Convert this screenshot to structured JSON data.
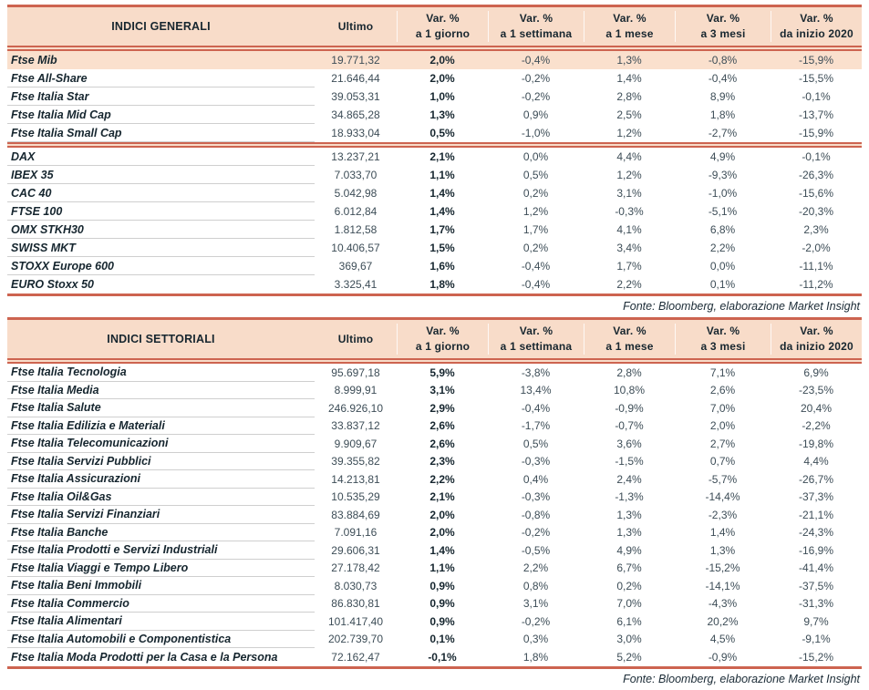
{
  "page": {
    "accent_red": "#cd6450",
    "header_peach": "#f8dcc9",
    "highlight_peach": "#fae0cd",
    "text_dark": "#16262f",
    "text_number": "#3d4d57"
  },
  "tables": [
    {
      "title": "INDICI GENERALI",
      "col_ultimo": "Ultimo",
      "var_cols": [
        {
          "line1": "Var. %",
          "line2": "a 1 giorno"
        },
        {
          "line1": "Var. %",
          "line2": "a 1 settimana"
        },
        {
          "line1": "Var. %",
          "line2": "a 1 mese"
        },
        {
          "line1": "Var. %",
          "line2": "a 3 mesi"
        },
        {
          "line1": "Var. %",
          "line2": "da inizio 2020"
        }
      ],
      "rows": [
        {
          "name": "Ftse Mib",
          "values": [
            "19.771,32",
            "2,0%",
            "-0,4%",
            "1,3%",
            "-0,8%",
            "-15,9%"
          ],
          "highlight": true
        },
        {
          "name": "Ftse All-Share",
          "values": [
            "21.646,44",
            "2,0%",
            "-0,2%",
            "1,4%",
            "-0,4%",
            "-15,5%"
          ]
        },
        {
          "name": "Ftse Italia Star",
          "values": [
            "39.053,31",
            "1,0%",
            "-0,2%",
            "2,8%",
            "8,9%",
            "-0,1%"
          ]
        },
        {
          "name": "Ftse Italia Mid Cap",
          "values": [
            "34.865,28",
            "1,3%",
            "0,9%",
            "2,5%",
            "1,8%",
            "-13,7%"
          ]
        },
        {
          "name": "Ftse Italia Small Cap",
          "values": [
            "18.933,04",
            "0,5%",
            "-1,0%",
            "1,2%",
            "-2,7%",
            "-15,9%"
          ]
        },
        {
          "name": "DAX",
          "values": [
            "13.237,21",
            "2,1%",
            "0,0%",
            "4,4%",
            "4,9%",
            "-0,1%"
          ],
          "separator_before": true
        },
        {
          "name": "IBEX 35",
          "values": [
            "7.033,70",
            "1,1%",
            "0,5%",
            "1,2%",
            "-9,3%",
            "-26,3%"
          ]
        },
        {
          "name": "CAC 40",
          "values": [
            "5.042,98",
            "1,4%",
            "0,2%",
            "3,1%",
            "-1,0%",
            "-15,6%"
          ]
        },
        {
          "name": "FTSE 100",
          "values": [
            "6.012,84",
            "1,4%",
            "1,2%",
            "-0,3%",
            "-5,1%",
            "-20,3%"
          ]
        },
        {
          "name": "OMX STKH30",
          "values": [
            "1.812,58",
            "1,7%",
            "1,7%",
            "4,1%",
            "6,8%",
            "2,3%"
          ]
        },
        {
          "name": "SWISS MKT",
          "values": [
            "10.406,57",
            "1,5%",
            "0,2%",
            "3,4%",
            "2,2%",
            "-2,0%"
          ]
        },
        {
          "name": "STOXX Europe 600",
          "values": [
            "369,67",
            "1,6%",
            "-0,4%",
            "1,7%",
            "0,0%",
            "-11,1%"
          ]
        },
        {
          "name": "EURO Stoxx 50",
          "values": [
            "3.325,41",
            "1,8%",
            "-0,4%",
            "2,2%",
            "0,1%",
            "-11,2%"
          ]
        }
      ],
      "fonte": "Fonte: Bloomberg, elaborazione Market Insight"
    },
    {
      "title": "INDICI SETTORIALI",
      "col_ultimo": "Ultimo",
      "var_cols": [
        {
          "line1": "Var. %",
          "line2": "a 1 giorno"
        },
        {
          "line1": "Var. %",
          "line2": "a 1 settimana"
        },
        {
          "line1": "Var. %",
          "line2": "a 1 mese"
        },
        {
          "line1": "Var. %",
          "line2": "a 3 mesi"
        },
        {
          "line1": "Var. %",
          "line2": "da inizio 2020"
        }
      ],
      "rows": [
        {
          "name": "Ftse Italia Tecnologia",
          "values": [
            "95.697,18",
            "5,9%",
            "-3,8%",
            "2,8%",
            "7,1%",
            "6,9%"
          ]
        },
        {
          "name": "Ftse Italia Media",
          "values": [
            "8.999,91",
            "3,1%",
            "13,4%",
            "10,8%",
            "2,6%",
            "-23,5%"
          ]
        },
        {
          "name": "Ftse Italia Salute",
          "values": [
            "246.926,10",
            "2,9%",
            "-0,4%",
            "-0,9%",
            "7,0%",
            "20,4%"
          ]
        },
        {
          "name": "Ftse Italia Edilizia e Materiali",
          "values": [
            "33.837,12",
            "2,6%",
            "-1,7%",
            "-0,7%",
            "2,0%",
            "-2,2%"
          ]
        },
        {
          "name": "Ftse Italia Telecomunicazioni",
          "values": [
            "9.909,67",
            "2,6%",
            "0,5%",
            "3,6%",
            "2,7%",
            "-19,8%"
          ]
        },
        {
          "name": "Ftse Italia Servizi Pubblici",
          "values": [
            "39.355,82",
            "2,3%",
            "-0,3%",
            "-1,5%",
            "0,7%",
            "4,4%"
          ]
        },
        {
          "name": "Ftse Italia Assicurazioni",
          "values": [
            "14.213,81",
            "2,2%",
            "0,4%",
            "2,4%",
            "-5,7%",
            "-26,7%"
          ]
        },
        {
          "name": "Ftse Italia Oil&Gas",
          "values": [
            "10.535,29",
            "2,1%",
            "-0,3%",
            "-1,3%",
            "-14,4%",
            "-37,3%"
          ]
        },
        {
          "name": "Ftse Italia Servizi Finanziari",
          "values": [
            "83.884,69",
            "2,0%",
            "-0,8%",
            "1,3%",
            "-2,3%",
            "-21,1%"
          ]
        },
        {
          "name": "Ftse Italia Banche",
          "values": [
            "7.091,16",
            "2,0%",
            "-0,2%",
            "1,3%",
            "1,4%",
            "-24,3%"
          ]
        },
        {
          "name": "Ftse Italia Prodotti e Servizi Industriali",
          "values": [
            "29.606,31",
            "1,4%",
            "-0,5%",
            "4,9%",
            "1,3%",
            "-16,9%"
          ]
        },
        {
          "name": "Ftse Italia Viaggi e Tempo Libero",
          "values": [
            "27.178,42",
            "1,1%",
            "2,2%",
            "6,7%",
            "-15,2%",
            "-41,4%"
          ]
        },
        {
          "name": "Ftse Italia Beni Immobili",
          "values": [
            "8.030,73",
            "0,9%",
            "0,8%",
            "0,2%",
            "-14,1%",
            "-37,5%"
          ]
        },
        {
          "name": "Ftse Italia Commercio",
          "values": [
            "86.830,81",
            "0,9%",
            "3,1%",
            "7,0%",
            "-4,3%",
            "-31,3%"
          ]
        },
        {
          "name": "Ftse Italia Alimentari",
          "values": [
            "101.417,40",
            "0,9%",
            "-0,2%",
            "6,1%",
            "20,2%",
            "9,7%"
          ]
        },
        {
          "name": "Ftse Italia Automobili e Componentistica",
          "values": [
            "202.739,70",
            "0,1%",
            "0,3%",
            "3,0%",
            "4,5%",
            "-9,1%"
          ]
        },
        {
          "name": "Ftse Italia Moda Prodotti per la Casa e la Persona",
          "values": [
            "72.162,47",
            "-0,1%",
            "1,8%",
            "5,2%",
            "-0,9%",
            "-15,2%"
          ]
        }
      ],
      "fonte": "Fonte: Bloomberg, elaborazione Market Insight"
    }
  ]
}
